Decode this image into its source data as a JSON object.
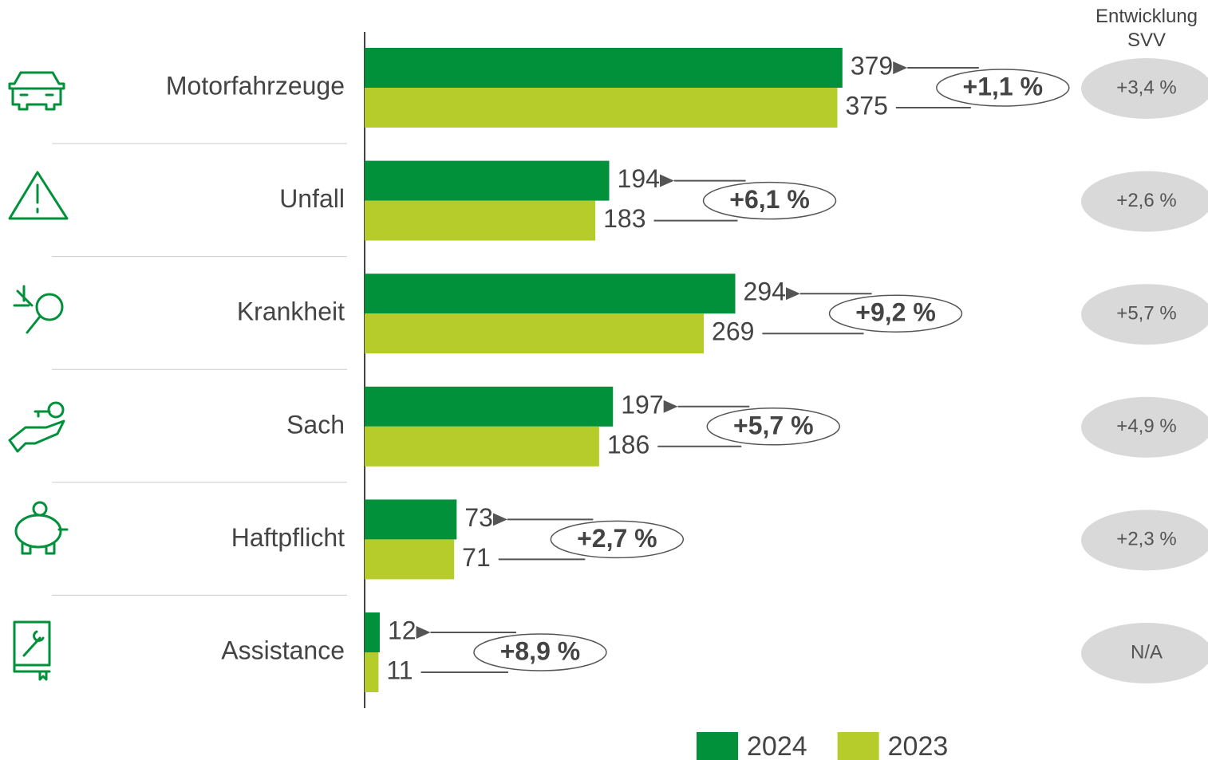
{
  "chart_data": {
    "type": "hbar",
    "categories": [
      "Motorfahrzeuge",
      "Unfall",
      "Krankheit",
      "Sach",
      "Haftpflicht",
      "Assistance"
    ],
    "series": [
      {
        "name": "2024",
        "color": "#00913a",
        "values": [
          379,
          194,
          294,
          197,
          73,
          12
        ]
      },
      {
        "name": "2023",
        "color": "#b5cc2a",
        "values": [
          375,
          183,
          269,
          186,
          71,
          11
        ]
      }
    ],
    "xlim": [
      0,
      500
    ],
    "changes": [
      "+1,1 %",
      "+6,1 %",
      "+9,2 %",
      "+5,7 %",
      "+2,7 %",
      "+8,9 %"
    ],
    "benchmark_title": "Entwicklung SVV",
    "benchmark_values": [
      "+3,4 %",
      "+2,6 %",
      "+5,7 %",
      "+4,9 %",
      "+2,3 %",
      "N/A"
    ],
    "legend": "bottom"
  }
}
